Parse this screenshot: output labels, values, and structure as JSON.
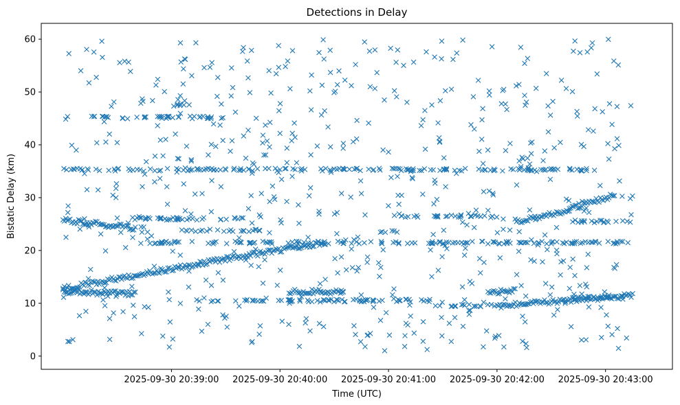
{
  "chart_data": {
    "type": "scatter",
    "title": "Detections in Delay",
    "xlabel": "Time (UTC)",
    "ylabel": "Bistatic Delay (km)",
    "marker": "x",
    "color": "#1f77b4",
    "grid": false,
    "legend": "none",
    "x_ticks": [
      "2025-09-30 20:39:00",
      "2025-09-30 20:40:00",
      "2025-09-30 20:41:00",
      "2025-09-30 20:42:00",
      "2025-09-30 20:43:00"
    ],
    "y_ticks": [
      0,
      10,
      20,
      30,
      40,
      50,
      60
    ],
    "xlim": [
      "2025-09-30 20:37:48",
      "2025-09-30 20:43:37"
    ],
    "ylim": [
      -2.5,
      63
    ],
    "points_note": "",
    "tracks": [
      {
        "start": [
          "2025-09-30 20:38:00",
          12.8
        ],
        "end": [
          "2025-09-30 20:39:15",
          17.5
        ]
      },
      {
        "start": [
          "2025-09-30 20:39:15",
          17.5
        ],
        "end": [
          "2025-09-30 20:40:25",
          21.5
        ]
      },
      {
        "start": [
          "2025-09-30 20:38:00",
          12.2
        ],
        "end": [
          "2025-09-30 20:38:40",
          11.8
        ]
      },
      {
        "start": [
          "2025-09-30 20:38:00",
          25.8
        ],
        "end": [
          "2025-09-30 20:38:40",
          24.2
        ]
      },
      {
        "start": [
          "2025-09-30 20:40:05",
          12.2
        ],
        "end": [
          "2025-09-30 20:40:35",
          12.2
        ]
      },
      {
        "start": [
          "2025-09-30 20:41:55",
          12.0
        ],
        "end": [
          "2025-09-30 20:42:10",
          12.5
        ]
      },
      {
        "start": [
          "2025-09-30 20:42:10",
          25.5
        ],
        "end": [
          "2025-09-30 20:42:40",
          27.5
        ]
      },
      {
        "start": [
          "2025-09-30 20:42:00",
          9.5
        ],
        "end": [
          "2025-09-30 20:43:15",
          11.5
        ]
      },
      {
        "start": [
          "2025-09-30 20:42:40",
          27.8
        ],
        "end": [
          "2025-09-30 20:43:05",
          30.5
        ]
      }
    ],
    "bands": [
      {
        "y": 21.5,
        "from": "2025-09-30 20:38:40",
        "to": "2025-09-30 20:43:15"
      },
      {
        "y": 35.3,
        "from": "2025-09-30 20:38:00",
        "to": "2025-09-30 20:43:00"
      },
      {
        "y": 45.2,
        "from": "2025-09-30 20:38:15",
        "to": "2025-09-30 20:39:30"
      },
      {
        "y": 47.6,
        "from": "2025-09-30 20:39:00",
        "to": "2025-09-30 20:39:10"
      },
      {
        "y": 26.0,
        "from": "2025-09-30 20:38:30",
        "to": "2025-09-30 20:39:40"
      },
      {
        "y": 23.8,
        "from": "2025-09-30 20:39:05",
        "to": "2025-09-30 20:39:50"
      },
      {
        "y": 10.5,
        "from": "2025-09-30 20:39:10",
        "to": "2025-09-30 20:41:25"
      },
      {
        "y": 9.6,
        "from": "2025-09-30 20:41:25",
        "to": "2025-09-30 20:42:00"
      },
      {
        "y": 23.5,
        "from": "2025-09-30 20:40:55",
        "to": "2025-09-30 20:41:05"
      },
      {
        "y": 26.5,
        "from": "2025-09-30 20:41:05",
        "to": "2025-09-30 20:42:00"
      },
      {
        "y": 11.0,
        "from": "2025-09-30 20:42:40",
        "to": "2025-09-30 20:43:10"
      },
      {
        "y": 25.5,
        "from": "2025-09-30 20:42:40",
        "to": "2025-09-30 20:43:15"
      }
    ],
    "scatter_count": 620,
    "scatter_x_range": [
      "2025-09-30 20:38:00",
      "2025-09-30 20:43:15"
    ],
    "scatter_y_range": [
      1,
      60
    ]
  }
}
